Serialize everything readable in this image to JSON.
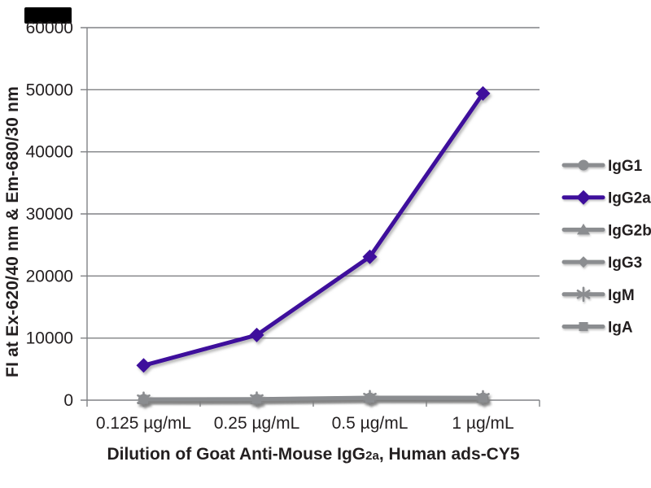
{
  "colors": {
    "text": "#231f20",
    "grid": "#808285",
    "gray_series": "#8b8d90",
    "purple_series": "#3e0f9c",
    "background": "#ffffff",
    "corner_box": "#000000"
  },
  "y_axis_title": "FI at Ex-620/40 nm & Em-680/30 nm",
  "x_axis_title": {
    "prefix": "Dilution of Goat Anti-Mouse IgG",
    "sub": "2a",
    "suffix": ", Human ads-CY5"
  },
  "chart_data": {
    "type": "line",
    "title": "",
    "xlabel": "Dilution of Goat Anti-Mouse IgG2a, Human ads-CY5",
    "ylabel": "FI at Ex-620/40 nm & Em-680/30 nm",
    "categories": [
      "0.125 µg/mL",
      "0.25 µg/mL",
      "0.5 µg/mL",
      "1 µg/mL"
    ],
    "yticks": [
      0,
      10000,
      20000,
      30000,
      40000,
      50000,
      60000
    ],
    "ylim": [
      0,
      60000
    ],
    "grid": "horizontal",
    "legend_position": "right",
    "series": [
      {
        "name": "IgG1",
        "marker": "circle",
        "color": "#8b8d90",
        "values": [
          150,
          160,
          350,
          350
        ]
      },
      {
        "name": "IgG2a",
        "marker": "diamond",
        "color": "#3e0f9c",
        "values": [
          5600,
          10500,
          23100,
          49400
        ]
      },
      {
        "name": "IgG2b",
        "marker": "triangle",
        "color": "#8b8d90",
        "values": [
          130,
          150,
          380,
          360
        ]
      },
      {
        "name": "IgG3",
        "marker": "diamond",
        "color": "#8b8d90",
        "values": [
          110,
          130,
          300,
          320
        ]
      },
      {
        "name": "IgM",
        "marker": "asterisk",
        "color": "#8b8d90",
        "values": [
          170,
          190,
          430,
          410
        ]
      },
      {
        "name": "IgA",
        "marker": "square",
        "color": "#8b8d90",
        "values": [
          120,
          140,
          330,
          340
        ]
      }
    ]
  }
}
